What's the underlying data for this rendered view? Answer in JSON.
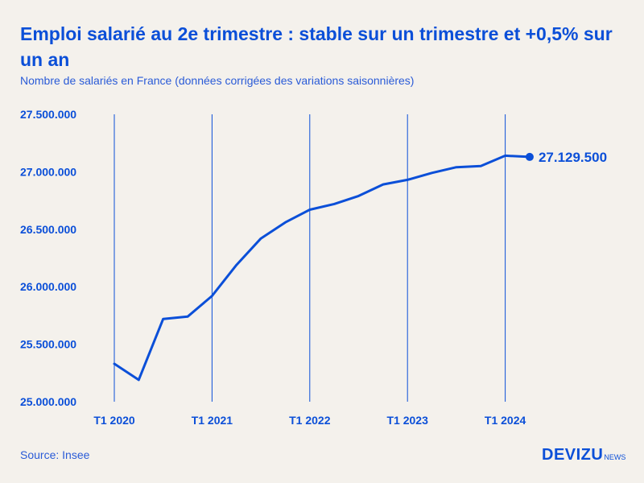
{
  "header": {
    "title": "Emploi salarié au 2e trimestre : stable sur un trimestre et +0,5% sur un an",
    "subtitle": "Nombre de salariés en France (données corrigées des variations saisonnières)"
  },
  "footer": {
    "source": "Source: Insee",
    "brand_main": "DEVIZU",
    "brand_sub": "NEWS"
  },
  "colors": {
    "line": "#0b4fd8",
    "grid": "#0b4fd8",
    "background": "#f4f1ec"
  },
  "chart_data": {
    "type": "line",
    "title": "Emploi salarié au 2e trimestre : stable sur un trimestre et +0,5% sur un an",
    "subtitle": "Nombre de salariés en France (données corrigées des variations saisonnières)",
    "x": [
      "T1 2020",
      "T2 2020",
      "T3 2020",
      "T4 2020",
      "T1 2021",
      "T2 2021",
      "T3 2021",
      "T4 2021",
      "T1 2022",
      "T2 2022",
      "T3 2022",
      "T4 2022",
      "T1 2023",
      "T2 2023",
      "T3 2023",
      "T4 2023",
      "T1 2024",
      "T2 2024"
    ],
    "x_ticks": [
      "T1 2020",
      "T1 2021",
      "T1 2022",
      "T1 2023",
      "T1 2024"
    ],
    "series": [
      {
        "values": [
          25330000,
          25190000,
          25720000,
          25740000,
          25920000,
          26190000,
          26420000,
          26560000,
          26670000,
          26720000,
          26790000,
          26890000,
          26930000,
          26990000,
          27040000,
          27050000,
          27140000,
          27129500
        ]
      }
    ],
    "end_label": "27.129.500",
    "y_ticks": [
      "25.000.000",
      "25.500.000",
      "26.000.000",
      "26.500.000",
      "27.000.000",
      "27.500.000"
    ],
    "ylim": [
      25000000,
      27500000
    ],
    "grid": "vertical at T1 of each year",
    "legend": "none"
  }
}
